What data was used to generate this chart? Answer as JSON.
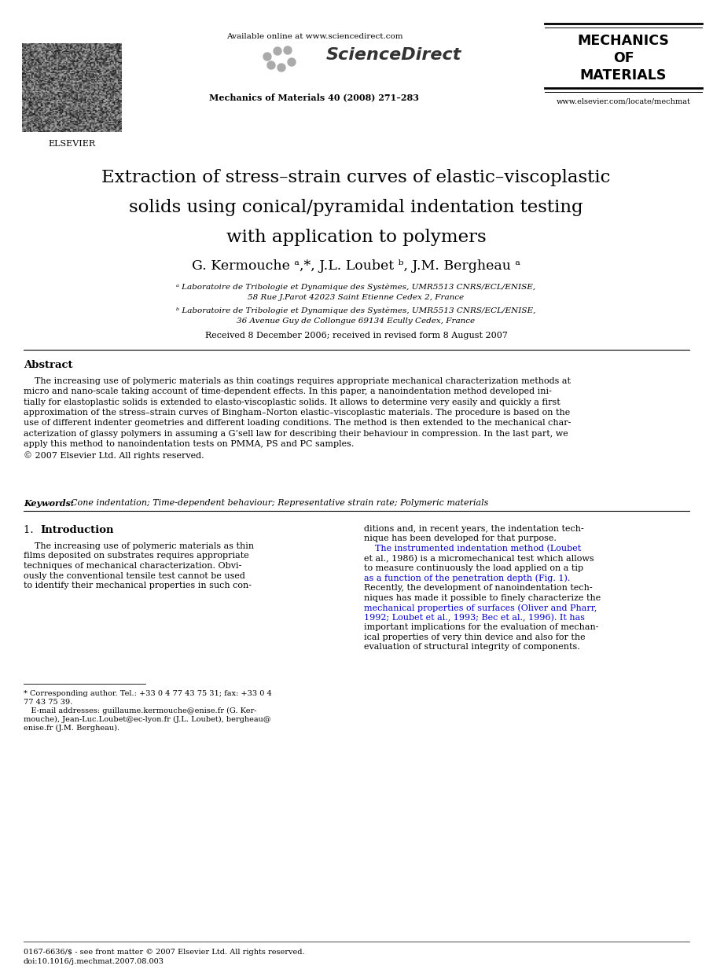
{
  "fig_width": 9.07,
  "fig_height": 12.38,
  "dpi": 100,
  "bg_color": "#ffffff",
  "available_online": "Available online at www.sciencedirect.com",
  "journal_info": "Mechanics of Materials 40 (2008) 271–283",
  "journal_name_line1": "MECHANICS",
  "journal_name_line2": "OF",
  "journal_name_line3": "MATERIALS",
  "journal_url": "www.elsevier.com/locate/mechmat",
  "elsevier_label": "ELSEVIER",
  "title_line1": "Extraction of stress–strain curves of elastic–viscoplastic",
  "title_line2": "solids using conical/pyramidal indentation testing",
  "title_line3": "with application to polymers",
  "authors": "G. Kermouche ᵃ,*, J.L. Loubet ᵇ, J.M. Bergheau ᵃ",
  "affil_a_line1": "ᵃ Laboratoire de Tribologie et Dynamique des Systèmes, UMR5513 CNRS/ECL/ENISE,",
  "affil_a_line2": "58 Rue J.Parot 42023 Saint Etienne Cedex 2, France",
  "affil_b_line1": "ᵇ Laboratoire de Tribologie et Dynamique des Systèmes, UMR5513 CNRS/ECL/ENISE,",
  "affil_b_line2": "36 Avenue Guy de Collongue 69134 Ecully Cedex, France",
  "received": "Received 8 December 2006; received in revised form 8 August 2007",
  "abstract_title": "Abstract",
  "abstract_indent": "    The increasing use of polymeric materials as thin coatings requires appropriate mechanical characterization methods at\nmicro and nano-scale taking account of time-dependent effects. In this paper, a nanoindentation method developed ini-\ntially for elastoplastic solids is extended to elasto-viscoplastic solids. It allows to determine very easily and quickly a first\napproximation of the stress–strain curves of Bingham–Norton elastic–viscoplastic materials. The procedure is based on the\nuse of different indenter geometries and different loading conditions. The method is then extended to the mechanical char-\nacterization of glassy polymers in assuming a G’sell law for describing their behaviour in compression. In the last part, we\napply this method to nanoindentation tests on PMMA, PS and PC samples.\n© 2007 Elsevier Ltd. All rights reserved.",
  "keywords_label": "Keywords:",
  "keywords_text": "  Cone indentation; Time-dependent behaviour; Representative strain rate; Polymeric materials",
  "intro_heading": "1. Introduction",
  "intro_left_1": "    The increasing use of polymeric materials as thin",
  "intro_left_2": "films deposited on substrates requires appropriate",
  "intro_left_3": "techniques of mechanical characterization. Obvi-",
  "intro_left_4": "ously the conventional tensile test cannot be used",
  "intro_left_5": "to identify their mechanical properties in such con-",
  "intro_right_1": "ditions and, in recent years, the indentation tech-",
  "intro_right_2": "nique has been developed for that purpose.",
  "intro_right_3": "    The instrumented indentation method (Loubet",
  "intro_right_4": "et al., 1986) is a micromechanical test which allows",
  "intro_right_5": "to measure continuously the load applied on a tip",
  "intro_right_6": "as a function of the penetration depth (Fig. 1).",
  "intro_right_7": "Recently, the development of nanoindentation tech-",
  "intro_right_8": "niques has made it possible to finely characterize the",
  "intro_right_9": "mechanical properties of surfaces (Oliver and Pharr,",
  "intro_right_10": "1992; Loubet et al., 1993; Bec et al., 1996). It has",
  "intro_right_11": "important implications for the evaluation of mechan-",
  "intro_right_12": "ical properties of very thin device and also for the",
  "intro_right_13": "evaluation of structural integrity of components.",
  "footnote_line1": "* Corresponding author. Tel.: +33 0 4 77 43 75 31; fax: +33 0 4",
  "footnote_line2": "77 43 75 39.",
  "footnote_line3": "   E-mail addresses: guillaume.kermouche@enise.fr (G. Ker-",
  "footnote_line4": "mouche), Jean-Luc.Loubet@ec-lyon.fr (J.L. Loubet), bergheau@",
  "footnote_line5": "enise.fr (J.M. Bergheau).",
  "bottom_line1": "0167-6636/$ - see front matter © 2007 Elsevier Ltd. All rights reserved.",
  "bottom_line2": "doi:10.1016/j.mechmat.2007.08.003",
  "intro_right_loubet_color": "#0000cc",
  "intro_right_oliver_color": "#0000cc",
  "intro_right_fig_color": "#0000cc"
}
